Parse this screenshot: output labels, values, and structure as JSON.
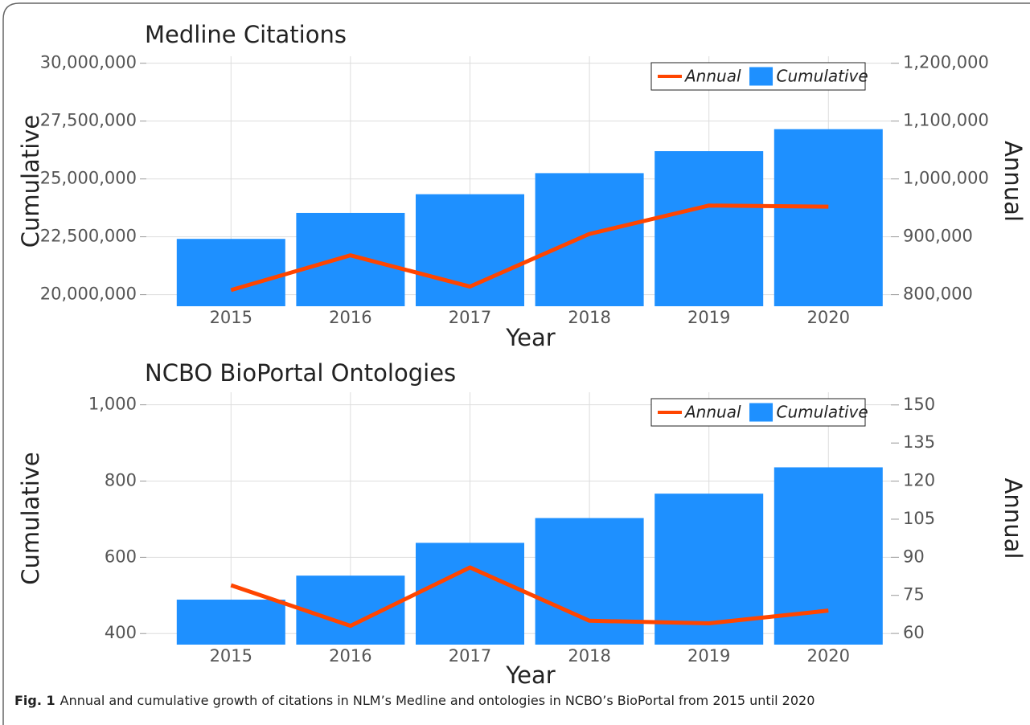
{
  "chart_data": [
    {
      "type": "combo",
      "title": "Medline Citations",
      "x_label": "Year",
      "y_label": "Cumulative",
      "y2_label": "Annual",
      "categories": [
        "2015",
        "2016",
        "2017",
        "2018",
        "2019",
        "2020"
      ],
      "series": [
        {
          "name": "Annual",
          "type": "line",
          "axis": "y2",
          "color": "#ff4500",
          "values": [
            808000,
            868000,
            814000,
            905000,
            954000,
            952000
          ]
        },
        {
          "name": "Cumulative",
          "type": "bar",
          "color": "#1e90ff",
          "values": [
            22410000,
            23530000,
            24340000,
            25250000,
            26200000,
            27150000
          ]
        }
      ],
      "ylim": [
        19500000,
        30300000
      ],
      "yticks": [
        {
          "value": 20000000,
          "label": "20,000,000"
        },
        {
          "value": 22500000,
          "label": "22,500,000"
        },
        {
          "value": 25000000,
          "label": "25,000,000"
        },
        {
          "value": 27500000,
          "label": "27,500,000"
        },
        {
          "value": 30000000,
          "label": "30,000,000"
        }
      ],
      "y2lim": [
        780000,
        1212000
      ],
      "y2ticks": [
        {
          "value": 800000,
          "label": "800,000"
        },
        {
          "value": 900000,
          "label": "900,000"
        },
        {
          "value": 1000000,
          "label": "1,000,000"
        },
        {
          "value": 1100000,
          "label": "1,100,000"
        },
        {
          "value": 1200000,
          "label": "1,200,000"
        }
      ],
      "grid": true,
      "legend": "top-right"
    },
    {
      "type": "combo",
      "title": "NCBO BioPortal Ontologies",
      "x_label": "Year",
      "y_label": "Cumulative",
      "y2_label": "Annual",
      "categories": [
        "2015",
        "2016",
        "2017",
        "2018",
        "2019",
        "2020"
      ],
      "series": [
        {
          "name": "Annual",
          "type": "line",
          "axis": "y2",
          "color": "#ff4500",
          "values": [
            79,
            63,
            86,
            65,
            64,
            69
          ]
        },
        {
          "name": "Cumulative",
          "type": "bar",
          "color": "#1e90ff",
          "values": [
            489,
            552,
            638,
            703,
            767,
            836
          ]
        }
      ],
      "ylim": [
        371,
        1033
      ],
      "yticks": [
        400,
        600,
        800,
        {
          "value": 1000,
          "label": "1,000"
        }
      ],
      "y2lim": [
        55.6,
        155
      ],
      "y2ticks": [
        60,
        75,
        90,
        105,
        120,
        135,
        150
      ],
      "grid": true,
      "legend": "top-right"
    }
  ],
  "caption": {
    "label": "Fig. 1",
    "text": "Annual and cumulative growth of citations in NLM’s Medline and ontologies in NCBO’s BioPortal from 2015 until 2020"
  }
}
